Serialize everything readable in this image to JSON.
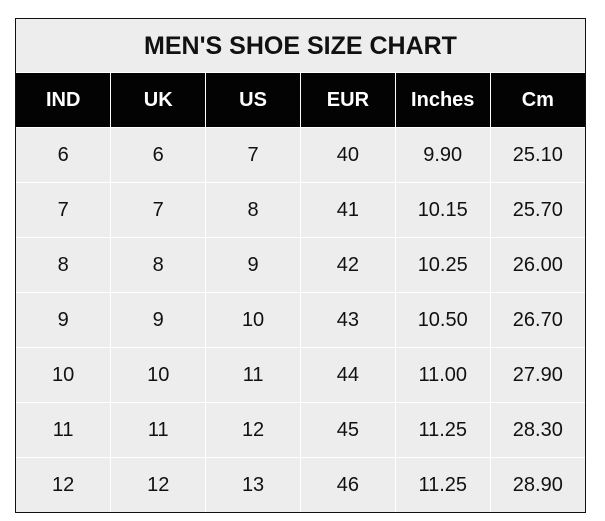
{
  "title": "MEN'S SHOE SIZE CHART",
  "headers": [
    "IND",
    "UK",
    "US",
    "EUR",
    "Inches",
    "Cm"
  ],
  "rows": [
    [
      "6",
      "6",
      "7",
      "40",
      "9.90",
      "25.10"
    ],
    [
      "7",
      "7",
      "8",
      "41",
      "10.15",
      "25.70"
    ],
    [
      "8",
      "8",
      "9",
      "42",
      "10.25",
      "26.00"
    ],
    [
      "9",
      "9",
      "10",
      "43",
      "10.50",
      "26.70"
    ],
    [
      "10",
      "10",
      "11",
      "44",
      "11.00",
      "27.90"
    ],
    [
      "11",
      "11",
      "12",
      "45",
      "11.25",
      "28.30"
    ],
    [
      "12",
      "12",
      "13",
      "46",
      "11.25",
      "28.90"
    ]
  ],
  "colors": {
    "header_bg": "#030303",
    "cell_bg": "#ededed",
    "grid": "#ffffff"
  }
}
